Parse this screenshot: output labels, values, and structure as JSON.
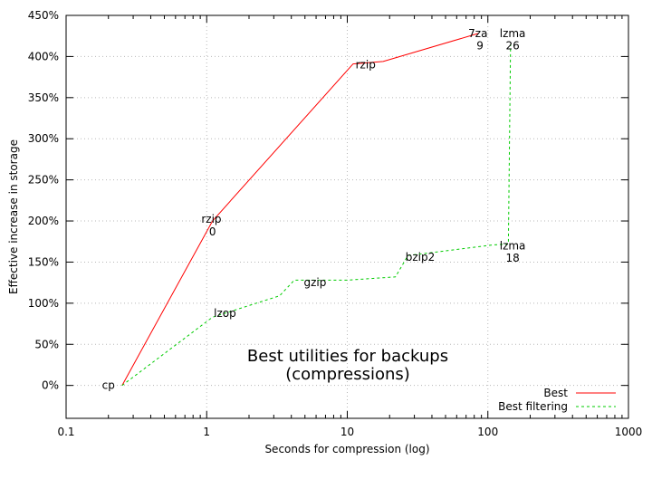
{
  "chart_data": {
    "type": "line",
    "xlabel": "Seconds for compression (log)",
    "ylabel": "Effective increase in storage",
    "xscale": "log",
    "xlim": [
      0.1,
      1000
    ],
    "ylim": [
      -40,
      450
    ],
    "x_ticks": [
      {
        "value": 0.1,
        "label": "0.1"
      },
      {
        "value": 1,
        "label": "1"
      },
      {
        "value": 10,
        "label": "10"
      },
      {
        "value": 100,
        "label": "100"
      },
      {
        "value": 1000,
        "label": "1000"
      }
    ],
    "y_ticks": [
      {
        "value": 0,
        "label": "0%"
      },
      {
        "value": 50,
        "label": "50%"
      },
      {
        "value": 100,
        "label": "100%"
      },
      {
        "value": 150,
        "label": "150%"
      },
      {
        "value": 200,
        "label": "200%"
      },
      {
        "value": 250,
        "label": "250%"
      },
      {
        "value": 300,
        "label": "300%"
      },
      {
        "value": 350,
        "label": "350%"
      },
      {
        "value": 400,
        "label": "400%"
      },
      {
        "value": 450,
        "label": "450%"
      }
    ],
    "grid": true,
    "legend_position": "bottom-right",
    "overlay_text": [
      "Best utilities for backups",
      "(compressions)"
    ],
    "series": [
      {
        "name": "Best",
        "color": "#ff0000",
        "dash": "solid",
        "x": [
          0.25,
          1.1,
          11,
          18,
          85
        ],
        "y": [
          0,
          200,
          391,
          394,
          428
        ]
      },
      {
        "name": "Best filtering",
        "color": "#00cc00",
        "dash": "dashed",
        "x": [
          0.25,
          1.1,
          3.3,
          4.2,
          10,
          22,
          27,
          110,
          140,
          145
        ],
        "y": [
          0,
          83,
          109,
          128,
          128,
          132,
          158,
          171,
          172,
          415
        ]
      }
    ],
    "point_labels": [
      {
        "text": "cp",
        "x": 0.2,
        "y": 0
      },
      {
        "text": "rzip",
        "x": 1.08,
        "y": 202
      },
      {
        "text": "0",
        "x": 1.1,
        "y": 187
      },
      {
        "text": "rzip",
        "x": 13.5,
        "y": 390
      },
      {
        "text": "7za",
        "x": 85,
        "y": 428
      },
      {
        "text": "9",
        "x": 88,
        "y": 413
      },
      {
        "text": "lzma",
        "x": 150,
        "y": 428
      },
      {
        "text": "26",
        "x": 150,
        "y": 413
      },
      {
        "text": "lzop",
        "x": 1.35,
        "y": 88
      },
      {
        "text": "gzip",
        "x": 5.9,
        "y": 125
      },
      {
        "text": "bzip2",
        "x": 33,
        "y": 156
      },
      {
        "text": "lzma",
        "x": 150,
        "y": 170
      },
      {
        "text": "18",
        "x": 150,
        "y": 155
      }
    ]
  }
}
